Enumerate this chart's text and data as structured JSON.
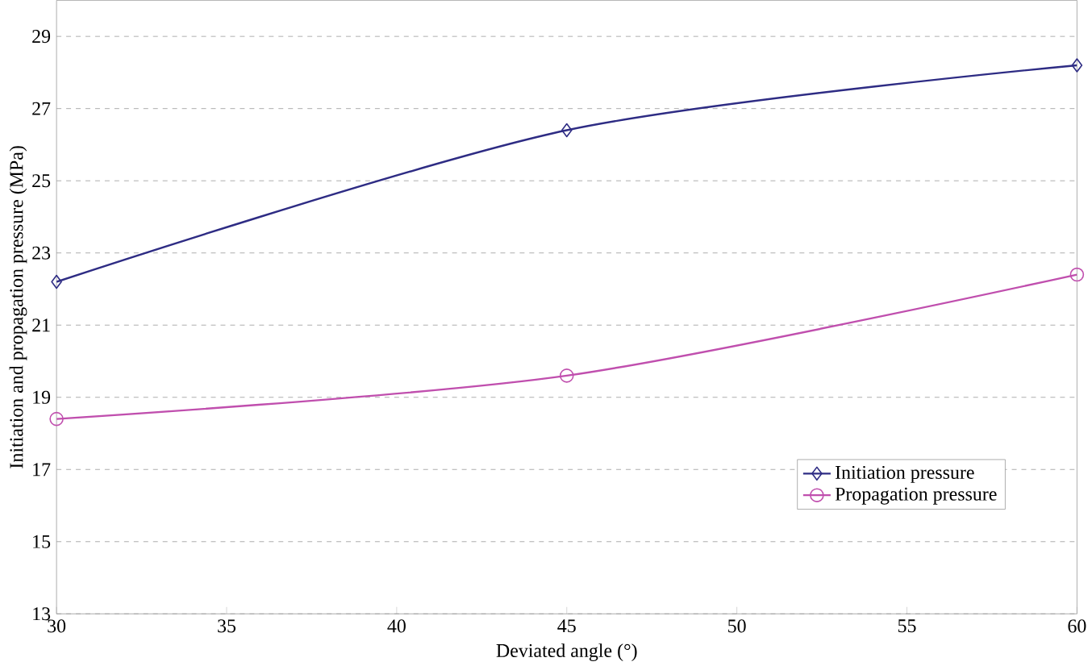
{
  "chart_data": {
    "type": "line",
    "xlabel": "Deviated angle (°)",
    "ylabel": "Initiation and propagation pressure (MPa)",
    "x": [
      30,
      45,
      60
    ],
    "series": [
      {
        "name": "Initiation pressure",
        "color": "#2e2c84",
        "values": [
          22.2,
          26.4,
          28.2
        ],
        "marker": "diamond"
      },
      {
        "name": "Propagation pressure",
        "color": "#c04fae",
        "values": [
          18.4,
          19.6,
          22.4
        ],
        "marker": "circle"
      }
    ],
    "xlim": [
      30,
      60
    ],
    "xticks": [
      30,
      35,
      40,
      45,
      50,
      55,
      60
    ],
    "ylim": [
      13,
      30
    ],
    "yticks": [
      13,
      15,
      17,
      19,
      21,
      23,
      25,
      27,
      29
    ],
    "grid": "y",
    "legend": "bottom right",
    "line_style": "solid"
  }
}
